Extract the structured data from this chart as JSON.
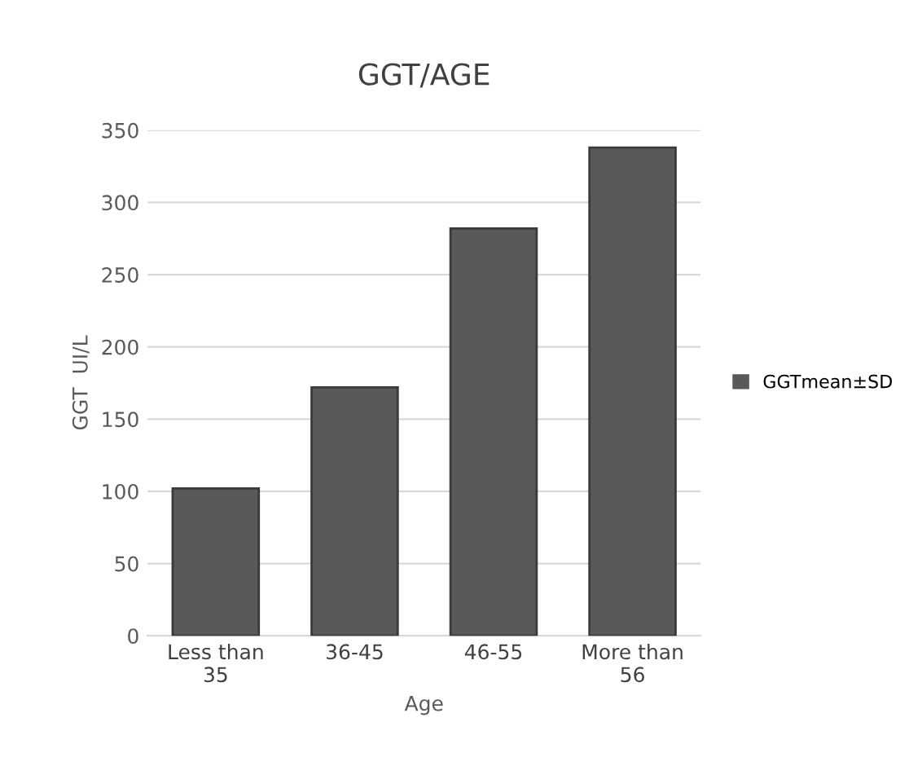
{
  "chart_data": {
    "type": "bar",
    "title": "GGT/AGE",
    "xlabel": "Age",
    "ylabel": "GGT  UI/L",
    "categories": [
      "Less than\n35",
      "36-45",
      "46-55",
      "More than\n56"
    ],
    "series": [
      {
        "name": "GGTmean±SD",
        "color": "#595959",
        "values": [
          102,
          172,
          282,
          338
        ]
      }
    ],
    "ylim": [
      0,
      350
    ],
    "yticks": [
      0,
      50,
      100,
      150,
      200,
      250,
      300,
      350
    ],
    "grid": "y",
    "legend": "right"
  }
}
